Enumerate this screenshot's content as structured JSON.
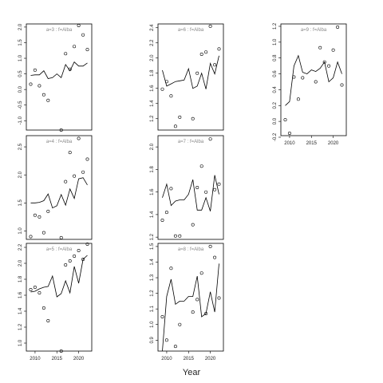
{
  "xlabel": "Year",
  "chart_data": [
    {
      "type": "line",
      "label": "a=3 : f=Alba",
      "x": [
        2009,
        2010,
        2011,
        2012,
        2013,
        2014,
        2015,
        2016,
        2017,
        2018,
        2019,
        2020,
        2021,
        2022
      ],
      "xticks": [
        2010,
        2015,
        2020
      ],
      "ylim": [
        -1.3,
        2.1
      ],
      "yticks": [
        -1.0,
        -0.5,
        0.0,
        0.5,
        1.0,
        1.5,
        2.0
      ],
      "ytick_labels": [
        "-1.0",
        "-0.5",
        "0.0",
        "0.5",
        "1.0",
        "1.5",
        "2.0"
      ],
      "line": [
        0.45,
        0.47,
        0.47,
        0.6,
        0.35,
        0.38,
        0.5,
        0.38,
        0.8,
        0.6,
        0.88,
        0.75,
        0.75,
        0.85
      ],
      "points": [
        [
          2009,
          0.17
        ],
        [
          2010,
          0.62
        ],
        [
          2011,
          0.12
        ],
        [
          2012,
          -0.17
        ],
        [
          2013,
          -0.35
        ],
        [
          2016,
          -1.3
        ],
        [
          2017,
          1.15
        ],
        [
          2018,
          0.65
        ],
        [
          2019,
          1.38
        ],
        [
          2020,
          2.05
        ],
        [
          2021,
          1.75
        ],
        [
          2022,
          1.28
        ]
      ]
    },
    {
      "type": "line",
      "label": "a=4 : f=Alba",
      "x": [
        2009,
        2010,
        2011,
        2012,
        2013,
        2014,
        2015,
        2016,
        2017,
        2018,
        2019,
        2020,
        2021,
        2022
      ],
      "xticks": [
        2010,
        2015,
        2020
      ],
      "ylim": [
        0.85,
        2.7
      ],
      "yticks": [
        1.0,
        1.5,
        2.0,
        2.5
      ],
      "ytick_labels": [
        "1.0",
        "1.5",
        "2.0",
        "2.5"
      ],
      "line": [
        1.5,
        1.5,
        1.51,
        1.54,
        1.66,
        1.41,
        1.45,
        1.65,
        1.46,
        1.75,
        1.58,
        1.93,
        1.95,
        1.82
      ],
      "points": [
        [
          2009,
          0.9
        ],
        [
          2010,
          1.28
        ],
        [
          2011,
          1.25
        ],
        [
          2012,
          0.97
        ],
        [
          2013,
          1.35
        ],
        [
          2016,
          0.88
        ],
        [
          2017,
          1.88
        ],
        [
          2018,
          2.4
        ],
        [
          2019,
          1.98
        ],
        [
          2020,
          2.65
        ],
        [
          2021,
          2.05
        ],
        [
          2022,
          2.28
        ]
      ]
    },
    {
      "type": "line",
      "label": "a=5 : f=Alba",
      "x": [
        2009,
        2010,
        2011,
        2012,
        2013,
        2014,
        2015,
        2016,
        2017,
        2018,
        2019,
        2020,
        2021,
        2022
      ],
      "xticks": [
        2010,
        2015,
        2020
      ],
      "ylim": [
        0.9,
        2.25
      ],
      "yticks": [
        1.0,
        1.2,
        1.4,
        1.6,
        1.8,
        2.0,
        2.2
      ],
      "ytick_labels": [
        "1.0",
        "1.2",
        "1.4",
        "1.6",
        "1.8",
        "2.0",
        "2.2"
      ],
      "line": [
        1.64,
        1.65,
        1.68,
        1.7,
        1.71,
        1.84,
        1.58,
        1.62,
        1.78,
        1.63,
        1.96,
        1.75,
        2.05,
        2.1
      ],
      "points": [
        [
          2009,
          1.67
        ],
        [
          2010,
          1.7
        ],
        [
          2011,
          1.63
        ],
        [
          2012,
          1.44
        ],
        [
          2013,
          1.28
        ],
        [
          2016,
          0.9
        ],
        [
          2017,
          1.98
        ],
        [
          2018,
          2.03
        ],
        [
          2019,
          2.09
        ],
        [
          2020,
          2.16
        ],
        [
          2021,
          2.05
        ],
        [
          2022,
          2.24
        ]
      ]
    },
    {
      "type": "line",
      "label": "a=6 : f=Alba",
      "x": [
        2009,
        2010,
        2011,
        2012,
        2013,
        2014,
        2015,
        2016,
        2017,
        2018,
        2019,
        2020,
        2021,
        2022
      ],
      "xticks": [
        2010,
        2015,
        2020
      ],
      "ylim": [
        1.05,
        2.45
      ],
      "yticks": [
        1.2,
        1.4,
        1.6,
        1.8,
        2.0,
        2.2,
        2.4
      ],
      "ytick_labels": [
        "1.2",
        "1.4",
        "1.6",
        "1.8",
        "2.0",
        "2.2",
        "2.4"
      ],
      "line": [
        1.84,
        1.63,
        1.66,
        1.69,
        1.7,
        1.71,
        1.86,
        1.6,
        1.63,
        1.8,
        1.59,
        1.93,
        1.79,
        2.03
      ],
      "points": [
        [
          2009,
          1.59
        ],
        [
          2010,
          1.69
        ],
        [
          2011,
          1.5
        ],
        [
          2012,
          1.1
        ],
        [
          2013,
          1.22
        ],
        [
          2016,
          1.2
        ],
        [
          2017,
          1.8
        ],
        [
          2018,
          2.05
        ],
        [
          2019,
          2.08
        ],
        [
          2020,
          2.42
        ],
        [
          2021,
          1.91
        ],
        [
          2022,
          2.12
        ]
      ]
    },
    {
      "type": "line",
      "label": "a=7 : f=Alba",
      "x": [
        2009,
        2010,
        2011,
        2012,
        2013,
        2014,
        2015,
        2016,
        2017,
        2018,
        2019,
        2020,
        2021,
        2022
      ],
      "xticks": [
        2010,
        2015,
        2020
      ],
      "ylim": [
        1.18,
        2.1
      ],
      "yticks": [
        1.2,
        1.4,
        1.6,
        1.8,
        2.0
      ],
      "ytick_labels": [
        "1.2",
        "1.4",
        "1.6",
        "1.8",
        "2.0"
      ],
      "line": [
        1.55,
        1.67,
        1.48,
        1.52,
        1.53,
        1.53,
        1.58,
        1.71,
        1.44,
        1.44,
        1.55,
        1.43,
        1.75,
        1.58
      ],
      "points": [
        [
          2009,
          1.35
        ],
        [
          2010,
          1.42
        ],
        [
          2011,
          1.63
        ],
        [
          2012,
          1.21
        ],
        [
          2013,
          1.21
        ],
        [
          2016,
          1.31
        ],
        [
          2017,
          1.64
        ],
        [
          2018,
          1.83
        ],
        [
          2019,
          1.6
        ],
        [
          2020,
          2.07
        ],
        [
          2021,
          1.62
        ],
        [
          2022,
          1.67
        ]
      ]
    },
    {
      "type": "line",
      "label": "a=8 : f=Alba",
      "x": [
        2009,
        2010,
        2011,
        2012,
        2013,
        2014,
        2015,
        2016,
        2017,
        2018,
        2019,
        2020,
        2021,
        2022
      ],
      "xticks": [
        2010,
        2015,
        2020
      ],
      "ylim": [
        0.83,
        1.52
      ],
      "yticks": [
        0.9,
        1.0,
        1.1,
        1.2,
        1.3,
        1.4,
        1.5
      ],
      "ytick_labels": [
        "0.9",
        "1.0",
        "1.1",
        "1.2",
        "1.3",
        "1.4",
        "1.5"
      ],
      "line": [
        0.83,
        1.18,
        1.29,
        1.13,
        1.15,
        1.15,
        1.18,
        1.18,
        1.31,
        1.05,
        1.07,
        1.21,
        1.08,
        1.39
      ],
      "points": [
        [
          2009,
          1.05
        ],
        [
          2010,
          0.9
        ],
        [
          2011,
          1.36
        ],
        [
          2012,
          0.86
        ],
        [
          2013,
          1.0
        ],
        [
          2016,
          1.08
        ],
        [
          2017,
          1.16
        ],
        [
          2018,
          1.33
        ],
        [
          2019,
          1.07
        ],
        [
          2020,
          1.5
        ],
        [
          2021,
          1.43
        ],
        [
          2022,
          1.17
        ]
      ]
    },
    {
      "type": "line",
      "label": "a=9 : f=Alba",
      "x": [
        2009,
        2010,
        2011,
        2012,
        2013,
        2014,
        2015,
        2016,
        2017,
        2018,
        2019,
        2020,
        2021,
        2022
      ],
      "xticks": [
        2010,
        2015,
        2020
      ],
      "ylim": [
        -0.18,
        1.23
      ],
      "yticks": [
        -0.2,
        0.0,
        0.2,
        0.4,
        0.6,
        0.8,
        1.0,
        1.2
      ],
      "ytick_labels": [
        "-0.2",
        "0.0",
        "0.2",
        "0.4",
        "0.6",
        "0.8",
        "1.0",
        "1.2"
      ],
      "line": [
        0.2,
        0.25,
        0.7,
        0.83,
        0.62,
        0.6,
        0.65,
        0.63,
        0.67,
        0.75,
        0.5,
        0.55,
        0.75,
        0.6
      ],
      "points": [
        [
          2009,
          0.02
        ],
        [
          2010,
          -0.15
        ],
        [
          2011,
          0.56
        ],
        [
          2012,
          0.28
        ],
        [
          2013,
          0.55
        ],
        [
          2016,
          0.5
        ],
        [
          2017,
          0.93
        ],
        [
          2018,
          0.75
        ],
        [
          2019,
          0.7
        ],
        [
          2020,
          0.9
        ],
        [
          2021,
          1.19
        ],
        [
          2022,
          0.46
        ]
      ]
    }
  ]
}
